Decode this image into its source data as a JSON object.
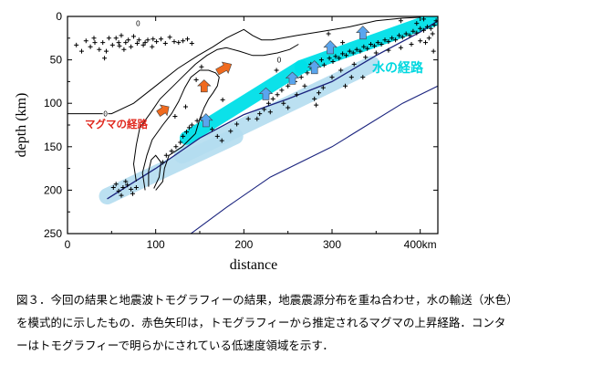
{
  "chart_data": {
    "type": "scatter",
    "xlabel": "distance",
    "ylabel": "depth (km)",
    "xlim": [
      0,
      420
    ],
    "ylim": [
      250,
      0
    ],
    "x_ticks": [
      "0",
      "100",
      "200",
      "300",
      "400km"
    ],
    "y_ticks": [
      "0",
      "50",
      "100",
      "150",
      "200",
      "250"
    ],
    "contour_labels": [
      "0",
      "0",
      "0"
    ],
    "annotations": {
      "water_path": "水の経路",
      "magma_path": "マグマの経路"
    },
    "colors": {
      "water": "#00e0e8",
      "water_light": "#b4ddf0",
      "magma_arrow": "#f06a1e",
      "water_arrow": "#5aa5ee",
      "slab_line": "#1a237e",
      "magma_text": "#e0281e",
      "water_text": "#00d8e0"
    },
    "slab_upper": [
      [
        45,
        210
      ],
      [
        100,
        175
      ],
      [
        150,
        140
      ],
      [
        200,
        113
      ],
      [
        250,
        95
      ],
      [
        300,
        75
      ],
      [
        350,
        45
      ],
      [
        400,
        18
      ],
      [
        420,
        5
      ]
    ],
    "slab_lower": [
      [
        140,
        250
      ],
      [
        180,
        220
      ],
      [
        230,
        185
      ],
      [
        300,
        150
      ],
      [
        380,
        100
      ],
      [
        420,
        80
      ]
    ],
    "water_paths": [
      {
        "shade": "light",
        "x": [
          45,
          190
        ],
        "y": [
          207,
          138
        ]
      },
      {
        "shade": "light",
        "x": [
          130,
          345
        ],
        "y": [
          160,
          55
        ]
      },
      {
        "shade": "cyan",
        "x": [
          135,
          265
        ],
        "y": [
          140,
          58
        ]
      },
      {
        "shade": "cyan",
        "x": [
          265,
          420
        ],
        "y": [
          58,
          2
        ]
      }
    ],
    "magma_arrows": [
      {
        "x": [
          103,
          115
        ],
        "y": [
          112,
          104
        ]
      },
      {
        "x": [
          155,
          155
        ],
        "y": [
          87,
          73
        ]
      },
      {
        "x": [
          170,
          186
        ],
        "y": [
          64,
          55
        ]
      }
    ],
    "water_arrows": [
      {
        "x": [
          157,
          157
        ],
        "y": [
          127,
          112
        ]
      },
      {
        "x": [
          225,
          225
        ],
        "y": [
          96,
          82
        ]
      },
      {
        "x": [
          255,
          255
        ],
        "y": [
          78,
          64
        ]
      },
      {
        "x": [
          280,
          280
        ],
        "y": [
          66,
          51
        ]
      },
      {
        "x": [
          298,
          298
        ],
        "y": [
          43,
          28
        ]
      },
      {
        "x": [
          335,
          335
        ],
        "y": [
          26,
          11
        ]
      }
    ],
    "contours": [
      [
        [
          0,
          112
        ],
        [
          50,
          112
        ],
        [
          75,
          100
        ],
        [
          100,
          80
        ],
        [
          125,
          60
        ],
        [
          148,
          45
        ],
        [
          165,
          35
        ],
        [
          180,
          25
        ],
        [
          200,
          15
        ],
        [
          210,
          22
        ],
        [
          220,
          27
        ],
        [
          232,
          27
        ],
        [
          260,
          22
        ],
        [
          290,
          17
        ],
        [
          320,
          12
        ],
        [
          350,
          5
        ],
        [
          380,
          2
        ],
        [
          400,
          1
        ]
      ],
      [
        [
          78,
          190
        ],
        [
          75,
          170
        ],
        [
          78,
          148
        ],
        [
          82,
          128
        ],
        [
          95,
          110
        ],
        [
          105,
          95
        ],
        [
          120,
          80
        ],
        [
          132,
          68
        ],
        [
          145,
          55
        ],
        [
          158,
          45
        ],
        [
          170,
          38
        ],
        [
          180,
          36
        ],
        [
          195,
          40
        ],
        [
          210,
          45
        ],
        [
          222,
          45
        ],
        [
          238,
          42
        ],
        [
          252,
          38
        ],
        [
          262,
          32
        ]
      ],
      [
        [
          88,
          200
        ],
        [
          85,
          180
        ],
        [
          90,
          160
        ],
        [
          96,
          142
        ],
        [
          108,
          125
        ],
        [
          118,
          112
        ],
        [
          126,
          98
        ],
        [
          133,
          82
        ],
        [
          140,
          70
        ],
        [
          150,
          62
        ],
        [
          160,
          62
        ],
        [
          168,
          65
        ],
        [
          172,
          70
        ],
        [
          170,
          80
        ],
        [
          165,
          88
        ],
        [
          160,
          95
        ],
        [
          155,
          105
        ],
        [
          150,
          118
        ],
        [
          145,
          135
        ],
        [
          130,
          150
        ],
        [
          115,
          160
        ],
        [
          110,
          175
        ],
        [
          108,
          190
        ],
        [
          100,
          200
        ]
      ],
      [
        [
          92,
          196
        ],
        [
          92,
          178
        ],
        [
          95,
          165
        ],
        [
          100,
          160
        ],
        [
          106,
          168
        ],
        [
          104,
          185
        ],
        [
          98,
          198
        ]
      ]
    ],
    "earthquakes": [
      [
        10,
        33
      ],
      [
        16,
        40
      ],
      [
        21,
        28
      ],
      [
        26,
        35
      ],
      [
        31,
        30
      ],
      [
        36,
        38
      ],
      [
        40,
        30
      ],
      [
        44,
        40
      ],
      [
        47,
        25
      ],
      [
        51,
        33
      ],
      [
        55,
        25
      ],
      [
        59,
        34
      ],
      [
        61,
        22
      ],
      [
        64,
        38
      ],
      [
        66,
        30
      ],
      [
        69,
        27
      ],
      [
        72,
        35
      ],
      [
        75,
        23
      ],
      [
        79,
        31
      ],
      [
        81,
        27
      ],
      [
        86,
        33
      ],
      [
        91,
        27
      ],
      [
        96,
        35
      ],
      [
        101,
        29
      ],
      [
        106,
        26
      ],
      [
        111,
        31
      ],
      [
        116,
        24
      ],
      [
        121,
        29
      ],
      [
        126,
        30
      ],
      [
        131,
        28
      ],
      [
        136,
        26
      ],
      [
        141,
        31
      ],
      [
        42,
        48
      ],
      [
        30,
        25
      ],
      [
        58,
        30
      ],
      [
        88,
        30
      ],
      [
        97,
        26
      ],
      [
        52,
        197
      ],
      [
        58,
        201
      ],
      [
        63,
        197
      ],
      [
        68,
        194
      ],
      [
        72,
        199
      ],
      [
        78,
        197
      ],
      [
        61,
        206
      ],
      [
        55,
        193
      ],
      [
        66,
        190
      ],
      [
        74,
        204
      ],
      [
        108,
        168
      ],
      [
        112,
        160
      ],
      [
        118,
        155
      ],
      [
        123,
        150
      ],
      [
        128,
        145
      ],
      [
        131,
        138
      ],
      [
        135,
        133
      ],
      [
        138,
        128
      ],
      [
        141,
        125
      ],
      [
        147,
        120
      ],
      [
        152,
        118
      ],
      [
        164,
        130
      ],
      [
        170,
        138
      ],
      [
        175,
        143
      ],
      [
        185,
        132
      ],
      [
        192,
        124
      ],
      [
        205,
        118
      ],
      [
        218,
        112
      ],
      [
        223,
        107
      ],
      [
        228,
        100
      ],
      [
        233,
        95
      ],
      [
        238,
        90
      ],
      [
        243,
        85
      ],
      [
        250,
        80
      ],
      [
        258,
        75
      ],
      [
        265,
        70
      ],
      [
        272,
        65
      ],
      [
        277,
        60
      ],
      [
        282,
        55
      ],
      [
        288,
        50
      ],
      [
        291,
        56
      ],
      [
        297,
        48
      ],
      [
        301,
        52
      ],
      [
        304,
        46
      ],
      [
        308,
        48
      ],
      [
        312,
        43
      ],
      [
        316,
        45
      ],
      [
        320,
        40
      ],
      [
        324,
        42
      ],
      [
        328,
        38
      ],
      [
        332,
        40
      ],
      [
        336,
        35
      ],
      [
        340,
        37
      ],
      [
        344,
        32
      ],
      [
        348,
        34
      ],
      [
        352,
        30
      ],
      [
        356,
        32
      ],
      [
        360,
        27
      ],
      [
        364,
        29
      ],
      [
        368,
        25
      ],
      [
        372,
        27
      ],
      [
        376,
        22
      ],
      [
        380,
        24
      ],
      [
        384,
        20
      ],
      [
        388,
        22
      ],
      [
        392,
        17
      ],
      [
        396,
        19
      ],
      [
        400,
        14
      ],
      [
        404,
        16
      ],
      [
        408,
        12
      ],
      [
        412,
        14
      ],
      [
        416,
        10
      ],
      [
        418,
        5
      ],
      [
        410,
        25
      ],
      [
        400,
        28
      ],
      [
        390,
        32
      ],
      [
        378,
        36
      ],
      [
        364,
        39
      ],
      [
        350,
        42
      ],
      [
        338,
        47
      ],
      [
        325,
        55
      ],
      [
        310,
        62
      ],
      [
        300,
        70
      ],
      [
        290,
        82
      ],
      [
        285,
        88
      ],
      [
        280,
        95
      ],
      [
        282,
        102
      ],
      [
        315,
        80
      ],
      [
        335,
        70
      ],
      [
        260,
        90
      ],
      [
        245,
        100
      ],
      [
        230,
        110
      ],
      [
        215,
        118
      ],
      [
        122,
        115
      ],
      [
        176,
        96
      ],
      [
        146,
        73
      ],
      [
        134,
        104
      ],
      [
        152,
        58
      ],
      [
        237,
        62
      ],
      [
        250,
        105
      ],
      [
        312,
        30
      ],
      [
        296,
        20
      ],
      [
        396,
        8
      ],
      [
        378,
        5
      ],
      [
        404,
        3
      ],
      [
        414,
        20
      ],
      [
        406,
        30
      ],
      [
        415,
        40
      ],
      [
        322,
        70
      ],
      [
        276,
        55
      ],
      [
        269,
        80
      ]
    ]
  },
  "caption": {
    "line1": "図３．今回の結果と地震波トモグラフィーの結果，地震震源分布を重ね合わせ，水の輸送（水色）",
    "line2": "を模式的に示したもの．赤色矢印は，トモグラフィーから推定されるマグマの上昇経路．コンタ",
    "line3": "ーはトモグラフィーで明らかにされている低速度領域を示す．"
  }
}
